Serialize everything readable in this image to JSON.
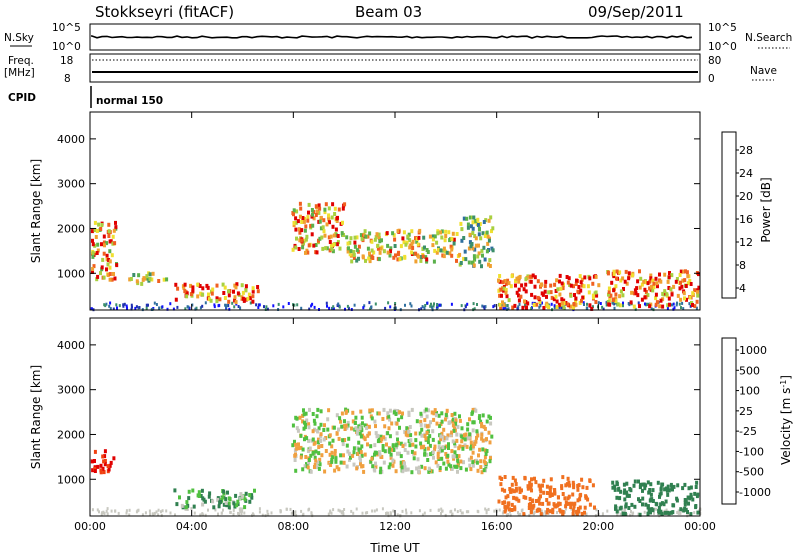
{
  "header": {
    "station": "Stokkseyri (fitACF)",
    "beam": "Beam 03",
    "date": "09/Sep/2011"
  },
  "status_panels": {
    "nsky_label": "N.Sky",
    "nsky_ticks": [
      "10^5",
      "10^0"
    ],
    "nsearch_label": "N.Search",
    "nsearch_ticks": [
      "10^5",
      "10^0"
    ],
    "freq_label": "Freq.",
    "freq_unit": "[MHz]",
    "freq_ticks": [
      "18",
      "8"
    ],
    "nave_label": "Nave",
    "nave_ticks": [
      "80",
      "0"
    ],
    "cpid_label": "CPID",
    "cpid_value": "normal 150"
  },
  "chart_data": [
    {
      "type": "heatmap",
      "name": "power",
      "ylabel": "Slant Range [km]",
      "xlabel": "",
      "xlim": [
        "00:00",
        "00:00"
      ],
      "ylim": [
        180,
        4600
      ],
      "x_ticks": [
        "00:00",
        "04:00",
        "08:00",
        "12:00",
        "16:00",
        "20:00",
        "00:00"
      ],
      "y_ticks": [
        1000,
        2000,
        3000,
        4000
      ],
      "colorbar": {
        "label": "Power [dB]",
        "ticks": [
          4,
          8,
          12,
          16,
          20,
          24,
          28
        ],
        "colors": [
          "#1010ff",
          "#2030b0",
          "#2f6f9f",
          "#3c8f6a",
          "#5ab04a",
          "#a8d040",
          "#f0e030",
          "#f0a030",
          "#f06020",
          "#e00000"
        ]
      },
      "regions": [
        {
          "t0": 0.0,
          "t1": 1.0,
          "r0": 900,
          "r1": 2200,
          "level": 0.75
        },
        {
          "t0": 1.5,
          "t1": 3.0,
          "r0": 800,
          "r1": 1050,
          "level": 0.55
        },
        {
          "t0": 3.3,
          "t1": 6.6,
          "r0": 400,
          "r1": 800,
          "level": 0.8
        },
        {
          "t0": 7.9,
          "t1": 10.0,
          "r0": 1500,
          "r1": 2600,
          "level": 0.7
        },
        {
          "t0": 10.0,
          "t1": 14.5,
          "r0": 1300,
          "r1": 2000,
          "level": 0.65
        },
        {
          "t0": 14.5,
          "t1": 15.8,
          "r0": 1200,
          "r1": 2300,
          "level": 0.5
        },
        {
          "t0": 16.0,
          "t1": 20.0,
          "r0": 250,
          "r1": 1000,
          "level": 0.85
        },
        {
          "t0": 20.3,
          "t1": 23.9,
          "r0": 300,
          "r1": 1100,
          "level": 0.8
        }
      ]
    },
    {
      "type": "heatmap",
      "name": "velocity",
      "ylabel": "Slant Range [km]",
      "xlabel": "Time UT",
      "xlim": [
        "00:00",
        "00:00"
      ],
      "ylim": [
        180,
        4600
      ],
      "x_ticks": [
        "00:00",
        "04:00",
        "08:00",
        "12:00",
        "16:00",
        "20:00",
        "00:00"
      ],
      "y_ticks": [
        1000,
        2000,
        3000,
        4000
      ],
      "colorbar": {
        "label": "Velocity [m s-1]",
        "ticks": [
          1000,
          500,
          100,
          25,
          -25,
          -100,
          -500,
          -1000
        ],
        "colors": [
          "#2040c0",
          "#3060b0",
          "#308050",
          "#50c040",
          "#c8c8c0",
          "#c8c8c0",
          "#f0a040",
          "#f07020",
          "#f04010",
          "#e00000"
        ]
      },
      "regions": [
        {
          "t0": 0.0,
          "t1": 0.9,
          "r0": 1200,
          "r1": 1700,
          "v": -1000
        },
        {
          "t0": 3.2,
          "t1": 6.5,
          "r0": 400,
          "r1": 800,
          "v": 100
        },
        {
          "t0": 7.9,
          "t1": 15.8,
          "r0": 1200,
          "r1": 2600,
          "v": 0
        },
        {
          "t0": 16.0,
          "t1": 19.8,
          "r0": 250,
          "r1": 1100,
          "v": -300
        },
        {
          "t0": 20.5,
          "t1": 23.9,
          "r0": 250,
          "r1": 1000,
          "v": 400
        }
      ]
    }
  ]
}
